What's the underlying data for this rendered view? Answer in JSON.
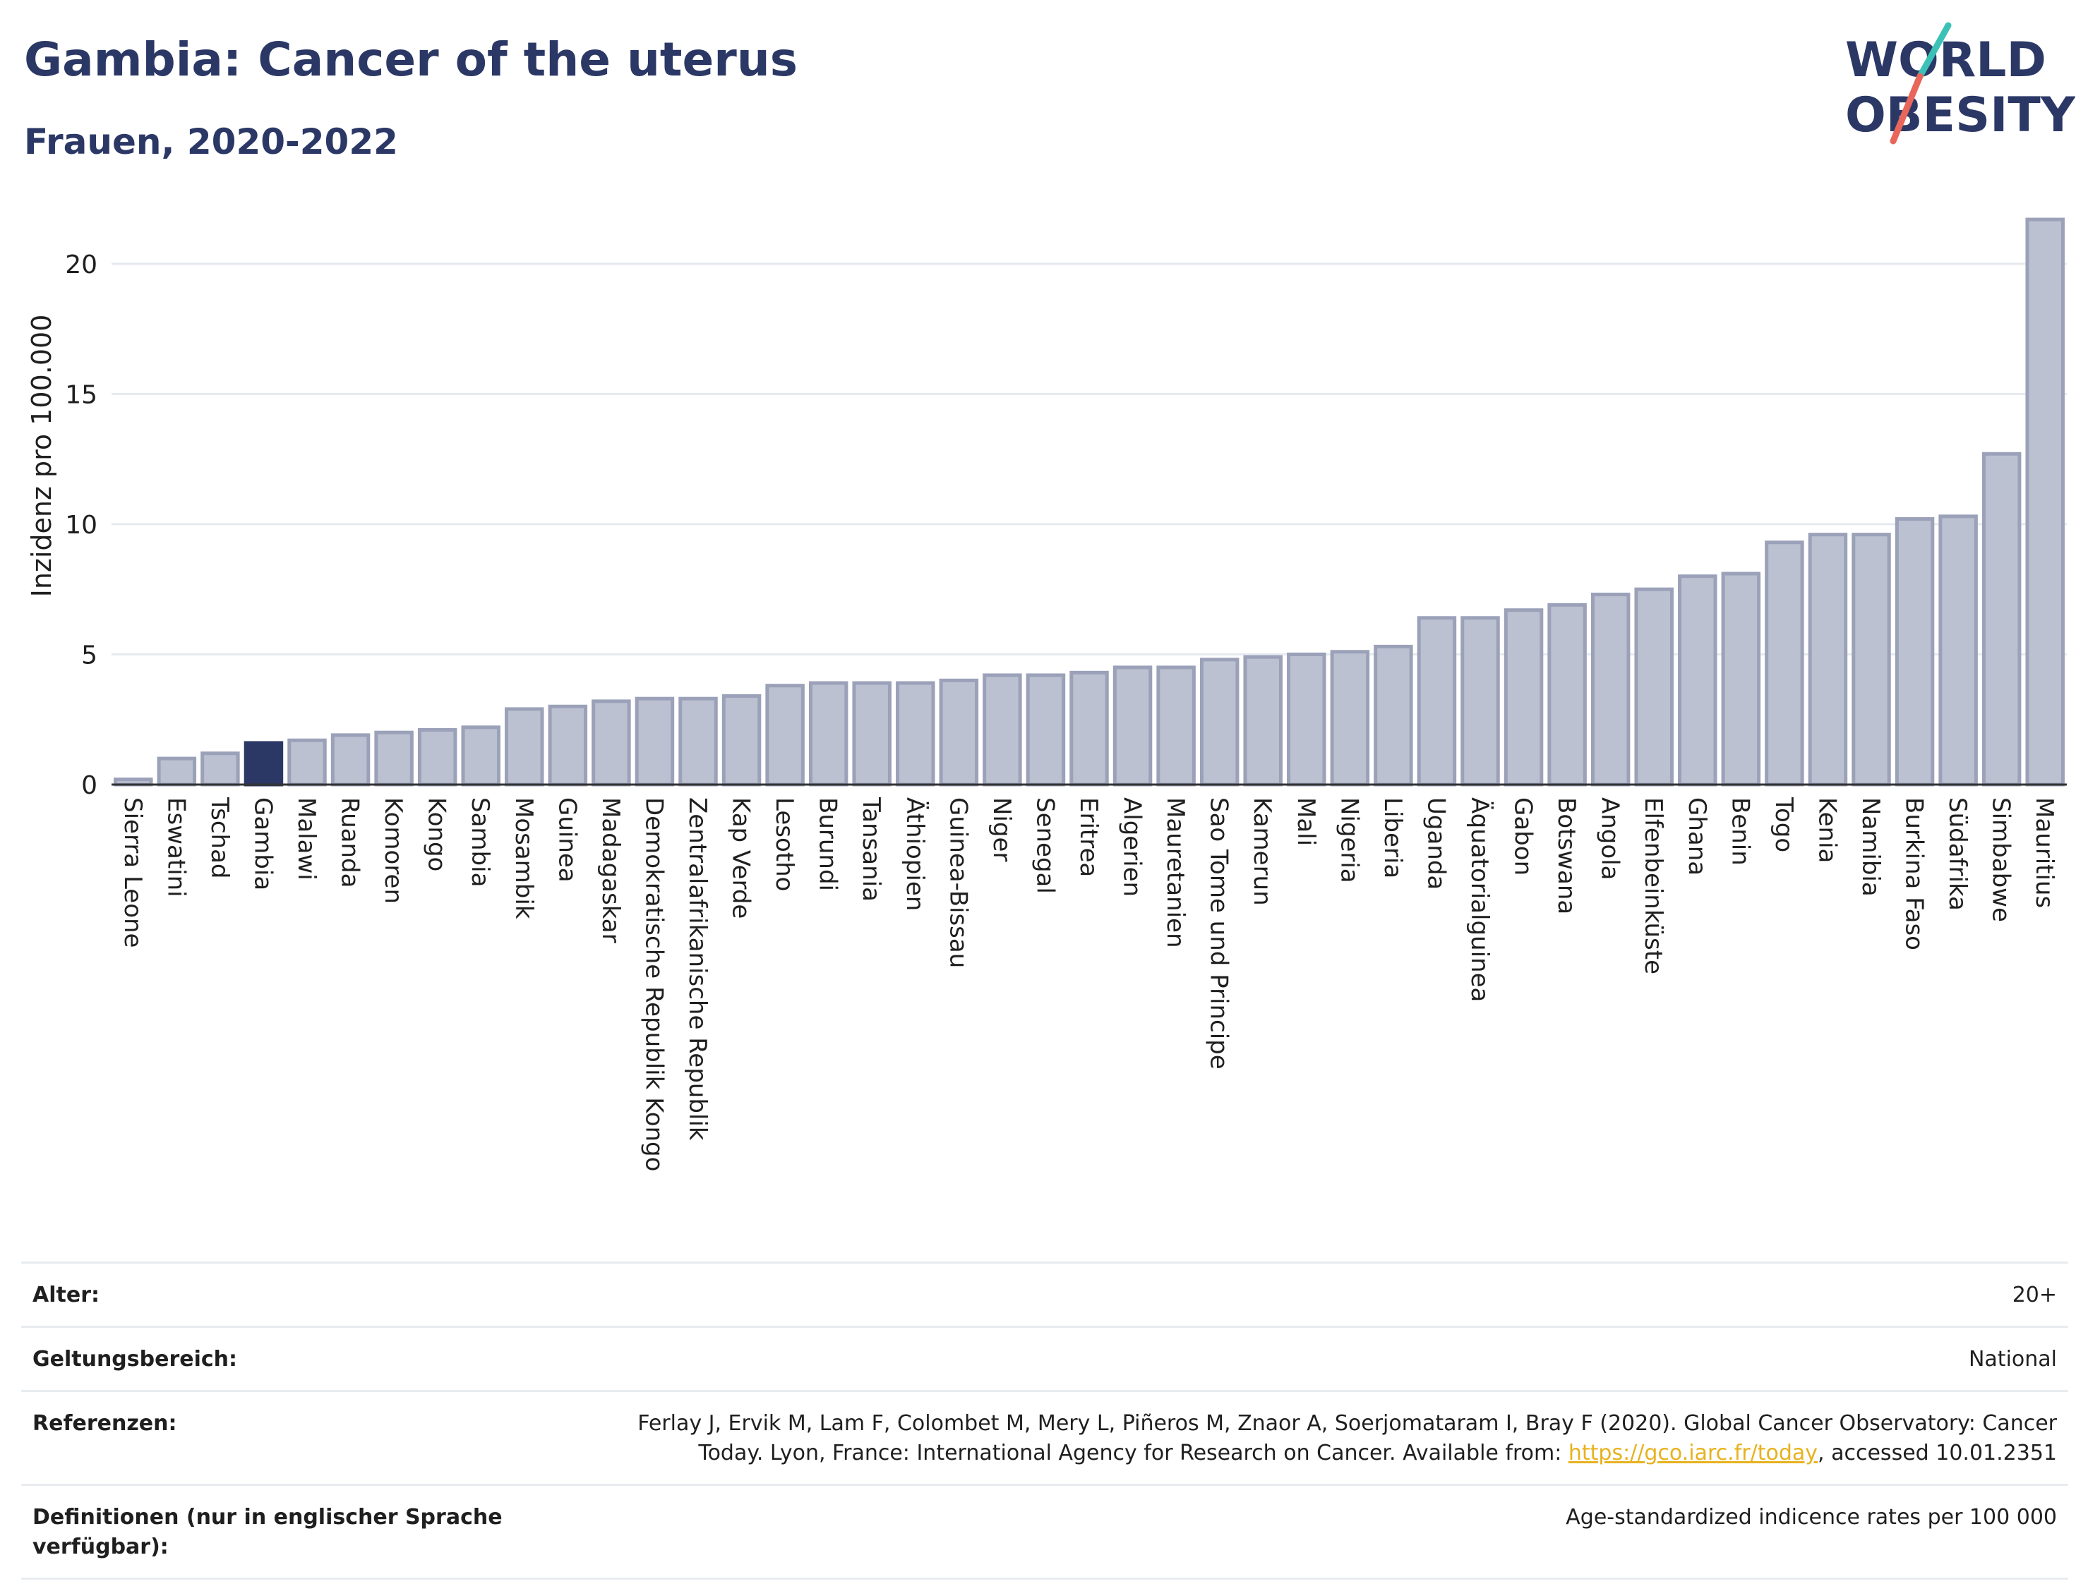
{
  "header": {
    "title": "Gambia: Cancer of the uterus",
    "subtitle": "Frauen, 2020-2022"
  },
  "logo": {
    "line1": "WORLD",
    "line2": "OBESITY"
  },
  "colors": {
    "bar": "#bcc1d1",
    "bar_edge": "#9aa1b8",
    "highlight": "#2b3866",
    "grid": "#e6e9ef",
    "axis": "#333333"
  },
  "chart_data": {
    "type": "bar",
    "ylabel": "Inzidenz pro 100.000",
    "ylim": [
      0,
      22
    ],
    "yticks": [
      0,
      5,
      10,
      15,
      20
    ],
    "highlight": "Gambia",
    "categories": [
      "Sierra Leone",
      "Eswatini",
      "Tschad",
      "Gambia",
      "Malawi",
      "Ruanda",
      "Komoren",
      "Kongo",
      "Sambia",
      "Mosambik",
      "Guinea",
      "Madagaskar",
      "Demokratische Republik Kongo",
      "Zentralafrikanische Republik",
      "Kap Verde",
      "Lesotho",
      "Burundi",
      "Tansania",
      "Äthiopien",
      "Guinea-Bissau",
      "Niger",
      "Senegal",
      "Eritrea",
      "Algerien",
      "Mauretanien",
      "Sao Tome und Principe",
      "Kamerun",
      "Mali",
      "Nigeria",
      "Liberia",
      "Uganda",
      "Äquatorialguinea",
      "Gabon",
      "Botswana",
      "Angola",
      "Elfenbeinküste",
      "Ghana",
      "Benin",
      "Togo",
      "Kenia",
      "Namibia",
      "Burkina Faso",
      "Südafrika",
      "Simbabwe",
      "Mauritius"
    ],
    "values": [
      0.2,
      1.0,
      1.2,
      1.6,
      1.7,
      1.9,
      2.0,
      2.1,
      2.2,
      2.9,
      3.0,
      3.2,
      3.3,
      3.3,
      3.4,
      3.8,
      3.9,
      3.9,
      3.9,
      4.0,
      4.2,
      4.2,
      4.3,
      4.5,
      4.5,
      4.8,
      4.9,
      5.0,
      5.1,
      5.3,
      6.4,
      6.4,
      6.7,
      6.9,
      7.3,
      7.5,
      8.0,
      8.1,
      9.3,
      9.6,
      9.6,
      10.2,
      10.3,
      12.7,
      21.7
    ]
  },
  "info": {
    "rows": [
      {
        "label": "Alter:",
        "value": "20+"
      },
      {
        "label": "Geltungsbereich:",
        "value": "National"
      },
      {
        "label": "Referenzen:",
        "value_pre": "Ferlay J, Ervik M, Lam F, Colombet M, Mery L, Piñeros M, Znaor A, Soerjomataram I, Bray F (2020). Global Cancer Observatory: Cancer Today. Lyon, France: International Agency for Research on Cancer. Available from: ",
        "link": "https://gco.iarc.fr/today",
        "value_post": ", accessed 10.01.2351"
      },
      {
        "label": "Definitionen (nur in englischer Sprache verfügbar):",
        "value": "Age-standardized indicence rates per 100 000"
      }
    ]
  }
}
